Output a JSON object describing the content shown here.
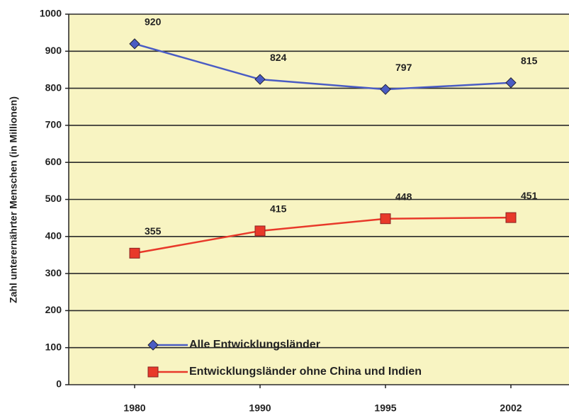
{
  "chart_data": {
    "type": "line",
    "y_label": "Zahl unterernährter Menschen (in Millionen)",
    "categories": [
      "1980",
      "1990",
      "1995",
      "2002"
    ],
    "series": [
      {
        "name": "Alle Entwicklungsländer",
        "color": "#4a5cc4",
        "marker": "diamond",
        "values": [
          920,
          824,
          797,
          815
        ]
      },
      {
        "name": "Entwicklungsländer ohne China und Indien",
        "color": "#e8392a",
        "marker": "square",
        "values": [
          355,
          415,
          448,
          451
        ]
      }
    ],
    "ylim": [
      0,
      1000
    ],
    "yticks": [
      0,
      100,
      200,
      300,
      400,
      500,
      600,
      700,
      800,
      900,
      1000
    ],
    "grid": true,
    "legend": "lower center",
    "data_labels": true
  }
}
